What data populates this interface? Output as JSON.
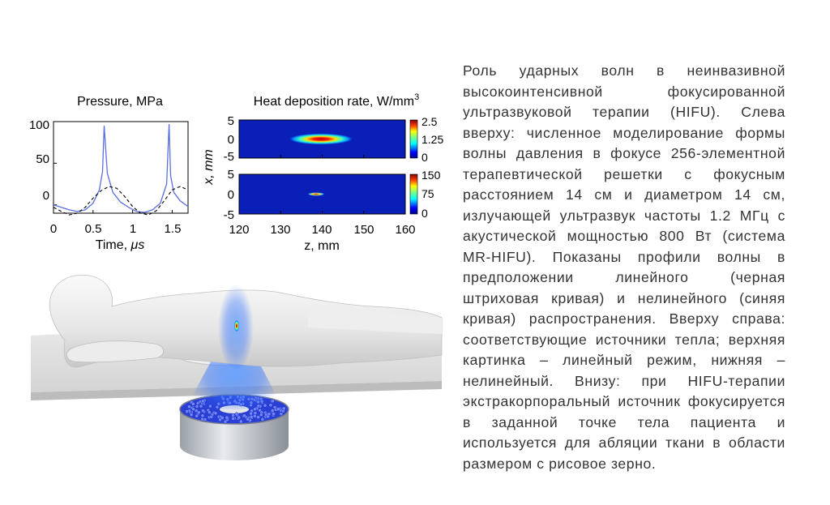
{
  "figure": {
    "pressure_chart": {
      "title": "Pressure, MPa",
      "xlabel_text": "Time, ",
      "xlabel_unit": "μs",
      "x_ticks": [
        "0",
        "0.5",
        "1",
        "1.5"
      ],
      "y_ticks": [
        "100",
        "50",
        "0"
      ]
    },
    "heat_chart": {
      "title": "Heat deposition rate, W/mm",
      "title_sup": "3",
      "ylabel": "x, mm",
      "xlabel": "z, mm",
      "x_ticks": [
        "120",
        "130",
        "140",
        "150",
        "160"
      ],
      "top_y_ticks": [
        "5",
        "0",
        "-5"
      ],
      "bottom_y_ticks": [
        "5",
        "0",
        "-5"
      ],
      "top_colorbar_ticks": [
        "2.5",
        "1.25",
        "0"
      ],
      "bottom_colorbar_ticks": [
        "150",
        "75",
        "0"
      ]
    }
  },
  "chart_data": [
    {
      "type": "line",
      "title": "Pressure, MPa",
      "xlabel": "Time, μs",
      "ylabel": "",
      "xlim": [
        0,
        1.7
      ],
      "ylim": [
        -10,
        100
      ],
      "series": [
        {
          "name": "",
          "style": "solid",
          "color": "#5a6fe0",
          "x": [
            0,
            0.1,
            0.2,
            0.3,
            0.4,
            0.5,
            0.58,
            0.62,
            0.64,
            0.68,
            0.75,
            0.85,
            0.95,
            1.05,
            1.15,
            1.25,
            1.35,
            1.43,
            1.46,
            1.48,
            1.52,
            1.6,
            1.7
          ],
          "y": [
            0,
            -3,
            -6,
            -8,
            -6,
            2,
            18,
            40,
            95,
            38,
            15,
            3,
            -3,
            -8,
            -9,
            -6,
            2,
            25,
            97,
            35,
            15,
            5,
            -2
          ]
        },
        {
          "name": "",
          "style": "dashed",
          "color": "#000000",
          "x": [
            0,
            0.1,
            0.2,
            0.3,
            0.4,
            0.5,
            0.6,
            0.7,
            0.8,
            0.9,
            1.0,
            1.1,
            1.2,
            1.3,
            1.4,
            1.5,
            1.6,
            1.7
          ],
          "y": [
            -3,
            -8,
            -12,
            -10,
            -3,
            8,
            17,
            22,
            20,
            10,
            -2,
            -10,
            -12,
            -7,
            5,
            18,
            22,
            18
          ]
        }
      ]
    },
    {
      "type": "heatmap",
      "title": "Heat deposition rate, W/mm3",
      "xlabel": "z, mm",
      "ylabel": "x, mm",
      "xlim": [
        120,
        160
      ],
      "ylim": [
        -5,
        5
      ],
      "colorbar_range": [
        0,
        2.5
      ],
      "focus_z": 140,
      "focus_x": 0
    },
    {
      "type": "heatmap",
      "title": "",
      "xlabel": "z, mm",
      "ylabel": "x, mm",
      "xlim": [
        120,
        160
      ],
      "ylim": [
        -5,
        5
      ],
      "colorbar_range": [
        0,
        150
      ],
      "focus_z": 139.5,
      "focus_x": 0
    }
  ],
  "caption": "Роль ударных волн в неинвазивной высокоинтенсивной фокусированной ультразвуковой терапии (HIFU). Слева вверху: численное моделирование формы волны давления в фокусе 256-элементной терапевтической решетки с фокусным расстоянием 14 см и диаметром 14 см, излучающей ультразвук частоты 1.2 МГц с акустической мощностью 800 Вт (система MR-HIFU). Показаны профили волны в предположении линейного (черная штриховая кривая) и нелинейного (синяя кривая) распространения. Вверху справа: соответствующие источники тепла; верхняя картинка – линейный режим, нижняя – нелинейный. Внизу: при HIFU-терапии экстракорпоральный источник фокусируется в заданной точке тела пациента и используется для абляции ткани в области размером с рисовое зерно."
}
